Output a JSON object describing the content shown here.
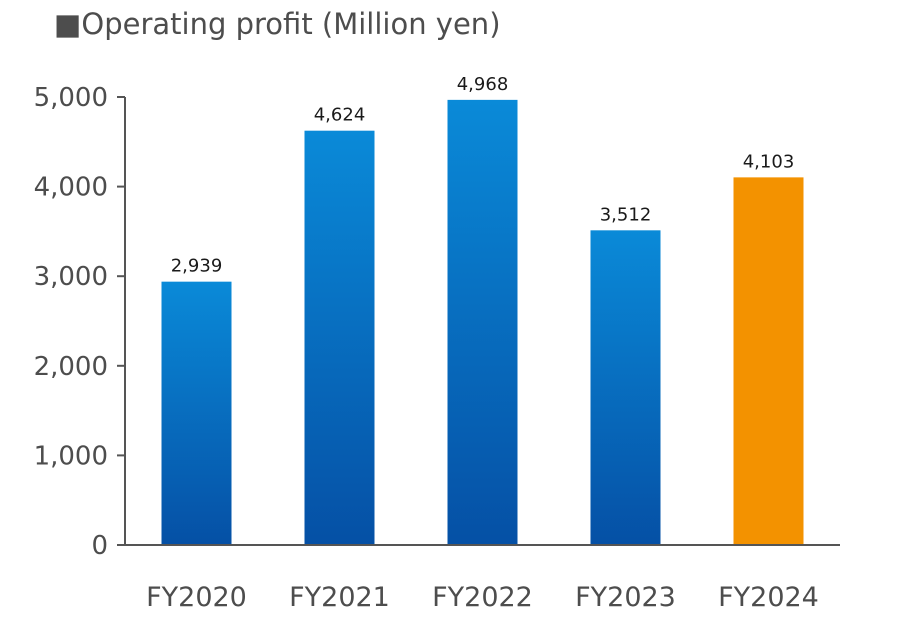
{
  "chart_data": {
    "type": "bar",
    "title_marker": "■",
    "title": "Operating profit (Million yen)",
    "categories": [
      "FY2020",
      "FY2021",
      "FY2022",
      "FY2023",
      "FY2024"
    ],
    "values": [
      2939,
      4624,
      4968,
      3512,
      4103
    ],
    "value_labels": [
      "2,939",
      "4,624",
      "4,968",
      "3,512",
      "4,103"
    ],
    "ylim": [
      0,
      5000
    ],
    "yticks": [
      0,
      1000,
      2000,
      3000,
      4000,
      5000
    ],
    "ytick_labels": [
      "0",
      "1,000",
      "2,000",
      "3,000",
      "4,000",
      "5,000"
    ],
    "grid": false,
    "legend": "none",
    "colors": {
      "bar_top": "#0a8ad8",
      "bar_bottom": "#0550a5",
      "highlight": "#f39200",
      "axis": "#555555"
    },
    "highlight_index": 4
  }
}
